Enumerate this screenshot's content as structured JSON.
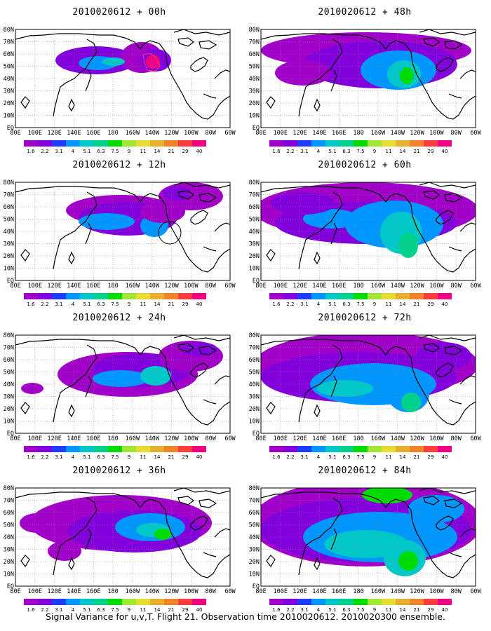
{
  "panels": [
    {
      "id": "p00",
      "title": "2010020612 + 00h",
      "col": 0,
      "row": 0
    },
    {
      "id": "p12",
      "title": "2010020612 + 12h",
      "col": 0,
      "row": 1
    },
    {
      "id": "p24",
      "title": "2010020612 + 24h",
      "col": 0,
      "row": 2
    },
    {
      "id": "p36",
      "title": "2010020612 + 36h",
      "col": 0,
      "row": 3
    },
    {
      "id": "p48",
      "title": "2010020612 + 48h",
      "col": 1,
      "row": 0
    },
    {
      "id": "p60",
      "title": "2010020612 + 60h",
      "col": 1,
      "row": 1
    },
    {
      "id": "p72",
      "title": "2010020612 + 72h",
      "col": 1,
      "row": 2
    },
    {
      "id": "p84",
      "title": "2010020612 + 84h",
      "col": 1,
      "row": 3
    }
  ],
  "lon_labels": [
    "80E",
    "100E",
    "120E",
    "140E",
    "160E",
    "180",
    "160W",
    "140W",
    "120W",
    "100W",
    "80W",
    "60W"
  ],
  "lat_labels": [
    "80N",
    "70N",
    "60N",
    "50N",
    "40N",
    "30N",
    "20N",
    "10N",
    "EQ"
  ],
  "colorbar": {
    "labels": [
      "1.6",
      "2.2",
      "3.1",
      "4",
      "5.1",
      "6.3",
      "7.5",
      "9",
      "11",
      "14",
      "21",
      "29",
      "40"
    ],
    "colors": [
      "#a000c8",
      "#8200dc",
      "#1e3cff",
      "#0096ff",
      "#00c8c8",
      "#00d28c",
      "#00dc00",
      "#a0e632",
      "#e6dc32",
      "#e6af2d",
      "#f08228",
      "#fa3c3c",
      "#f00082"
    ]
  },
  "footer": "Signal Variance for u,v,T. Flight 21. Observation time 2010020612. 2010020300 ensemble."
}
